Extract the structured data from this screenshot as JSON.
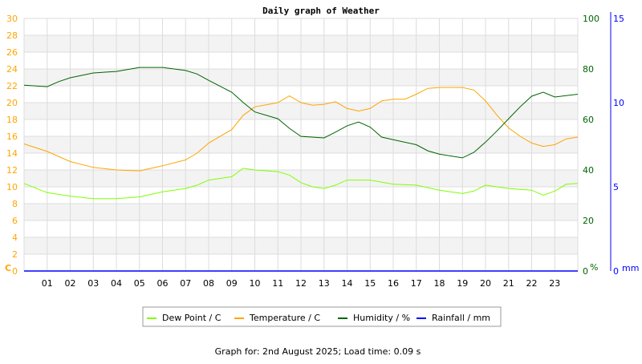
{
  "chart_data": {
    "type": "line",
    "title": "Daily graph of Weather",
    "footer": "Graph for: 2nd August 2025; Load time: 0.09 s",
    "x_ticks": [
      "01",
      "02",
      "03",
      "04",
      "05",
      "06",
      "07",
      "08",
      "09",
      "10",
      "11",
      "12",
      "13",
      "14",
      "15",
      "16",
      "17",
      "18",
      "19",
      "20",
      "21",
      "22",
      "23"
    ],
    "xlim": [
      0,
      24
    ],
    "left_axis": {
      "unit": "C",
      "ylim": [
        0,
        30
      ],
      "ticks": [
        0,
        2,
        4,
        6,
        8,
        10,
        12,
        14,
        16,
        18,
        20,
        22,
        24,
        26,
        28,
        30
      ],
      "color": "#ffa500"
    },
    "humidity_axis": {
      "unit": "%",
      "ylim": [
        0,
        100
      ],
      "ticks": [
        0,
        20,
        40,
        60,
        80,
        100
      ],
      "color": "#006400"
    },
    "rain_axis": {
      "unit": "mm",
      "ylim": [
        0,
        15
      ],
      "ticks": [
        0,
        5,
        10,
        15
      ],
      "color": "#0000ff"
    },
    "grid": true,
    "legend_placement": "bottom",
    "series": [
      {
        "name": "Dew Point / C",
        "color": "#80ff00",
        "axis": "left",
        "x": [
          0,
          1,
          2,
          3,
          4,
          5,
          6,
          7,
          7.5,
          8,
          9,
          9.5,
          10,
          11,
          11.5,
          12,
          12.5,
          13,
          13.5,
          14,
          15,
          16,
          17,
          18,
          19,
          19.5,
          20,
          21,
          22,
          22.5,
          23,
          23.5,
          24
        ],
        "y": [
          10.4,
          9.3,
          8.9,
          8.6,
          8.6,
          8.8,
          9.4,
          9.8,
          10.2,
          10.8,
          11.2,
          12.2,
          12.0,
          11.8,
          11.4,
          10.5,
          10.0,
          9.8,
          10.2,
          10.8,
          10.8,
          10.3,
          10.2,
          9.6,
          9.2,
          9.5,
          10.2,
          9.8,
          9.6,
          9.0,
          9.5,
          10.3,
          10.4
        ]
      },
      {
        "name": "Temperature / C",
        "color": "#ffa500",
        "axis": "left",
        "x": [
          0,
          1,
          2,
          3,
          4,
          5,
          6,
          7,
          7.5,
          8,
          9,
          9.5,
          10,
          11,
          11.5,
          12,
          12.5,
          13,
          13.5,
          14,
          14.5,
          15,
          15.5,
          16,
          16.5,
          17,
          17.5,
          18,
          19,
          19.5,
          20,
          20.5,
          21,
          21.5,
          22,
          22.5,
          23,
          23.5,
          24
        ],
        "y": [
          15.1,
          14.2,
          13.0,
          12.3,
          12.0,
          11.9,
          12.5,
          13.2,
          14.0,
          15.2,
          16.8,
          18.5,
          19.5,
          20.0,
          20.8,
          20.0,
          19.7,
          19.8,
          20.1,
          19.3,
          19.0,
          19.3,
          20.2,
          20.4,
          20.4,
          21.0,
          21.7,
          21.8,
          21.8,
          21.5,
          20.2,
          18.5,
          17.0,
          16.0,
          15.2,
          14.8,
          15.0,
          15.7,
          15.9
        ]
      },
      {
        "name": "Humidity / %",
        "color": "#006400",
        "axis": "humidity",
        "x": [
          0,
          1,
          1.5,
          2,
          3,
          4,
          5,
          6,
          7,
          7.5,
          8,
          9,
          9.5,
          10,
          11,
          11.5,
          12,
          13,
          13.5,
          14,
          14.5,
          15,
          15.5,
          16,
          17,
          17.5,
          18,
          19,
          19.5,
          20,
          20.5,
          21,
          21.5,
          22,
          22.5,
          23,
          24
        ],
        "y": [
          73.6,
          73,
          75,
          76.5,
          78.4,
          79,
          80.6,
          80.6,
          79.4,
          78,
          75.5,
          70.8,
          66.7,
          63,
          60.3,
          56.5,
          53.3,
          52.7,
          55,
          57.5,
          59,
          57,
          53,
          52,
          50,
          47.6,
          46.3,
          44.8,
          47,
          51,
          55.5,
          60.3,
          65,
          69.2,
          70.8,
          68.9,
          70
        ]
      },
      {
        "name": "Rainfall / mm",
        "color": "#0000ff",
        "axis": "rain",
        "x": [
          0,
          24
        ],
        "y": [
          0,
          0
        ]
      }
    ]
  }
}
